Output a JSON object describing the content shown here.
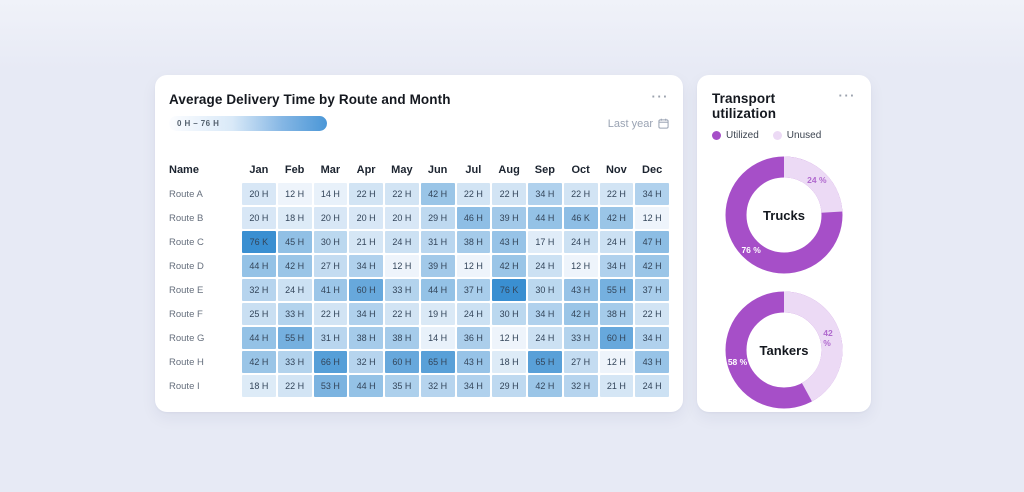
{
  "delivery_card": {
    "title": "Average Delivery Time by Route and Month",
    "menu_icon": "···",
    "range_legend_label": "0 H – 76 H",
    "period_selector_label": "Last year",
    "heat_scale": {
      "domain_min": 12,
      "domain_max": 76,
      "light_color": "#eef4fb",
      "dark_color": "#3a8fd1"
    },
    "table": {
      "name_header": "Name",
      "months": [
        "Jan",
        "Feb",
        "Mar",
        "Apr",
        "May",
        "Jun",
        "Jul",
        "Aug",
        "Sep",
        "Oct",
        "Nov",
        "Dec"
      ],
      "rows": [
        {
          "name": "Route A",
          "cells": [
            "20 H",
            "12 H",
            "14 H",
            "22 H",
            "22 H",
            "42 H",
            "22 H",
            "22 H",
            "34 H",
            "22 H",
            "22 H",
            "34 H"
          ]
        },
        {
          "name": "Route B",
          "cells": [
            "20 H",
            "18 H",
            "20 H",
            "20 H",
            "20 H",
            "29 H",
            "46 H",
            "39 H",
            "44 H",
            "46 K",
            "42 H",
            "12 H"
          ]
        },
        {
          "name": "Route C",
          "cells": [
            "76 K",
            "45 H",
            "30 H",
            "21 H",
            "24 H",
            "31 H",
            "38 H",
            "43 H",
            "17 H",
            "24 H",
            "24 H",
            "47 H"
          ]
        },
        {
          "name": "Route D",
          "cells": [
            "44 H",
            "42 H",
            "27 H",
            "34 H",
            "12 H",
            "39 H",
            "12 H",
            "42 H",
            "24 H",
            "12 H",
            "34 H",
            "42 H"
          ]
        },
        {
          "name": "Route E",
          "cells": [
            "32 H",
            "24 H",
            "41 H",
            "60 H",
            "33 H",
            "44 H",
            "37 H",
            "76 K",
            "30 H",
            "43 H",
            "55 H",
            "37 H"
          ]
        },
        {
          "name": "Route F",
          "cells": [
            "25 H",
            "33 H",
            "22 H",
            "34 H",
            "22 H",
            "19 H",
            "24 H",
            "30 H",
            "34 H",
            "42 H",
            "38 H",
            "22 H"
          ]
        },
        {
          "name": "Route G",
          "cells": [
            "44 H",
            "55 H",
            "31 H",
            "38 H",
            "38 H",
            "14 H",
            "36 H",
            "12 H",
            "24 H",
            "33 H",
            "60 H",
            "34 H"
          ]
        },
        {
          "name": "Route H",
          "cells": [
            "42 H",
            "33 H",
            "66 H",
            "32 H",
            "60 H",
            "65 H",
            "43 H",
            "18 H",
            "65 H",
            "27 H",
            "12 H",
            "43 H"
          ]
        },
        {
          "name": "Route I",
          "cells": [
            "18 H",
            "22 H",
            "53 H",
            "44 H",
            "35 H",
            "32 H",
            "34 H",
            "29 H",
            "42 H",
            "32 H",
            "21 H",
            "24 H"
          ]
        }
      ]
    }
  },
  "transport_card": {
    "title": "Transport utilization",
    "menu_icon": "···",
    "colors": {
      "utilized": "#a64fc8",
      "unused": "#ecdaf5",
      "unused_pct_text": "#b069ce",
      "utilized_pct_text": "#ffffff"
    },
    "legend": [
      {
        "label": "Utilized",
        "color": "#a64fc8"
      },
      {
        "label": "Unused",
        "color": "#ecdaf5"
      }
    ],
    "donuts": [
      {
        "label": "Trucks",
        "utilized_pct": 76,
        "unused_pct": 24,
        "utilized_label": "76 %",
        "unused_label": "24 %"
      },
      {
        "label": "Tankers",
        "utilized_pct": 58,
        "unused_pct": 42,
        "utilized_label": "58 %",
        "unused_label": "42 %"
      }
    ]
  },
  "chart_data": [
    {
      "type": "heatmap",
      "title": "Average Delivery Time by Route and Month",
      "unit": "hours",
      "x_labels": [
        "Jan",
        "Feb",
        "Mar",
        "Apr",
        "May",
        "Jun",
        "Jul",
        "Aug",
        "Sep",
        "Oct",
        "Nov",
        "Dec"
      ],
      "y_labels": [
        "Route A",
        "Route B",
        "Route C",
        "Route D",
        "Route E",
        "Route F",
        "Route G",
        "Route H",
        "Route I"
      ],
      "values": [
        [
          20,
          12,
          14,
          22,
          22,
          42,
          22,
          22,
          34,
          22,
          22,
          34
        ],
        [
          20,
          18,
          20,
          20,
          20,
          29,
          46,
          39,
          44,
          46,
          42,
          12
        ],
        [
          76,
          45,
          30,
          21,
          24,
          31,
          38,
          43,
          17,
          24,
          24,
          47
        ],
        [
          44,
          42,
          27,
          34,
          12,
          39,
          12,
          42,
          24,
          12,
          34,
          42
        ],
        [
          32,
          24,
          41,
          60,
          33,
          44,
          37,
          76,
          30,
          43,
          55,
          37
        ],
        [
          25,
          33,
          22,
          34,
          22,
          19,
          24,
          30,
          34,
          42,
          38,
          22
        ],
        [
          44,
          55,
          31,
          38,
          38,
          14,
          36,
          12,
          24,
          33,
          60,
          34
        ],
        [
          42,
          33,
          66,
          32,
          60,
          65,
          43,
          18,
          65,
          27,
          12,
          43
        ],
        [
          18,
          22,
          53,
          44,
          35,
          32,
          34,
          29,
          42,
          32,
          21,
          24
        ]
      ],
      "scale": {
        "range_label": "0 H – 76 H",
        "min": 0,
        "max": 76,
        "low_color": "#eef4fb",
        "high_color": "#3a8fd1"
      },
      "period": "Last year"
    },
    {
      "type": "pie",
      "title": "Transport utilization — Trucks",
      "labels": [
        "Utilized",
        "Unused"
      ],
      "values": [
        76,
        24
      ]
    },
    {
      "type": "pie",
      "title": "Transport utilization — Tankers",
      "labels": [
        "Utilized",
        "Unused"
      ],
      "values": [
        58,
        42
      ]
    }
  ]
}
